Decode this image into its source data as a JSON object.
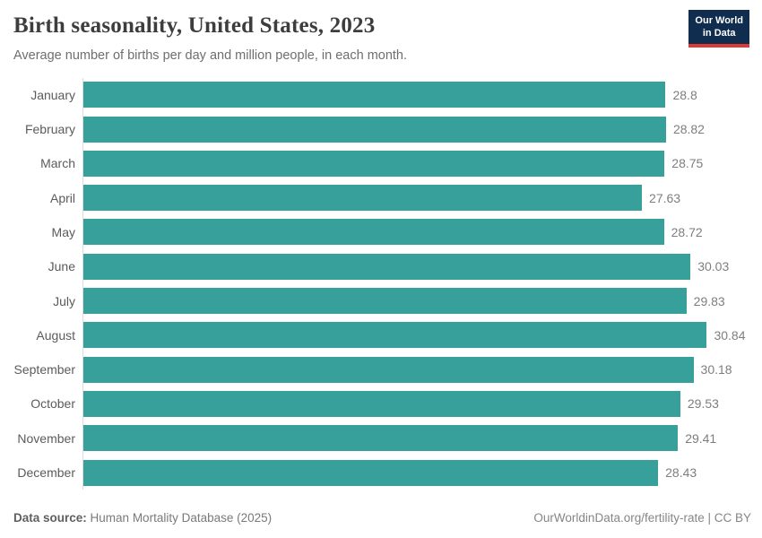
{
  "header": {
    "title": "Birth seasonality, United States, 2023",
    "subtitle": "Average number of births per day and million people, in each month.",
    "logo": {
      "line1": "Our World",
      "line2": "in Data",
      "bg_color": "#102d50",
      "accent_color": "#dc3a34"
    }
  },
  "chart_data": {
    "type": "bar",
    "orientation": "horizontal",
    "title": "Birth seasonality, United States, 2023",
    "subtitle": "Average number of births per day and million people, in each month.",
    "categories": [
      "January",
      "February",
      "March",
      "April",
      "May",
      "June",
      "July",
      "August",
      "September",
      "October",
      "November",
      "December"
    ],
    "values": [
      28.8,
      28.82,
      28.75,
      27.63,
      28.72,
      30.03,
      29.83,
      30.84,
      30.18,
      29.53,
      29.41,
      28.43
    ],
    "value_labels": [
      "28.8",
      "28.82",
      "28.75",
      "27.63",
      "28.72",
      "30.03",
      "29.83",
      "30.84",
      "30.18",
      "29.53",
      "29.41",
      "28.43"
    ],
    "xlabel": "",
    "ylabel": "",
    "xlim": [
      0,
      31
    ],
    "grid": false,
    "legend": false,
    "bar_color": "#38a09a",
    "axis_line_color": "#dcdcdc"
  },
  "footer": {
    "source_label": "Data source:",
    "source_value": "Human Mortality Database (2025)",
    "credit": "OurWorldinData.org/fertility-rate | CC BY"
  }
}
